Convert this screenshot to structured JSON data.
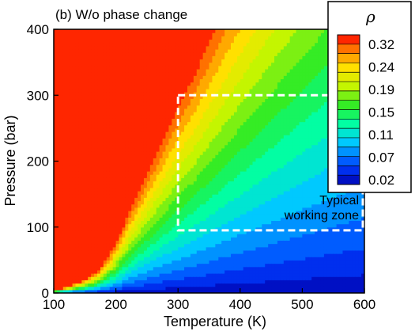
{
  "chart_data": {
    "type": "heatmap",
    "title": "(b) W/o phase change",
    "xlabel": "Temperature (K)",
    "ylabel": "Pressure (bar)",
    "xlim": [
      100,
      600
    ],
    "ylim": [
      0,
      400
    ],
    "x_ticks": [
      "100",
      "200",
      "300",
      "400",
      "500",
      "600"
    ],
    "y_ticks": [
      "0",
      "100",
      "200",
      "300",
      "400"
    ],
    "x_tick_values": [
      100,
      200,
      300,
      400,
      500,
      600
    ],
    "y_tick_values": [
      0,
      100,
      200,
      300,
      400
    ],
    "grid": false,
    "colorbar": {
      "title": "ρ",
      "labels": [
        "0.32",
        "0.24",
        "0.19",
        "0.15",
        "0.11",
        "0.07",
        "0.02"
      ],
      "min": 0.02,
      "max": 0.34,
      "placement": "top-right"
    },
    "field": {
      "description_of_model": "density rho(T, P), saturated above ~0.32",
      "saturation_curve_points": [
        [
          100,
          5
        ],
        [
          120,
          10
        ],
        [
          150,
          22
        ],
        [
          170,
          35
        ],
        [
          185,
          55
        ],
        [
          200,
          82
        ],
        [
          225,
          140
        ],
        [
          250,
          195
        ],
        [
          275,
          250
        ],
        [
          300,
          305
        ],
        [
          325,
          355
        ],
        [
          345,
          400
        ]
      ]
    },
    "annotations": [
      {
        "text_lines": [
          "Typical",
          "working zone"
        ],
        "box": {
          "x": [
            300,
            600
          ],
          "y": [
            95,
            300
          ]
        },
        "style": "dashed-white"
      }
    ]
  }
}
